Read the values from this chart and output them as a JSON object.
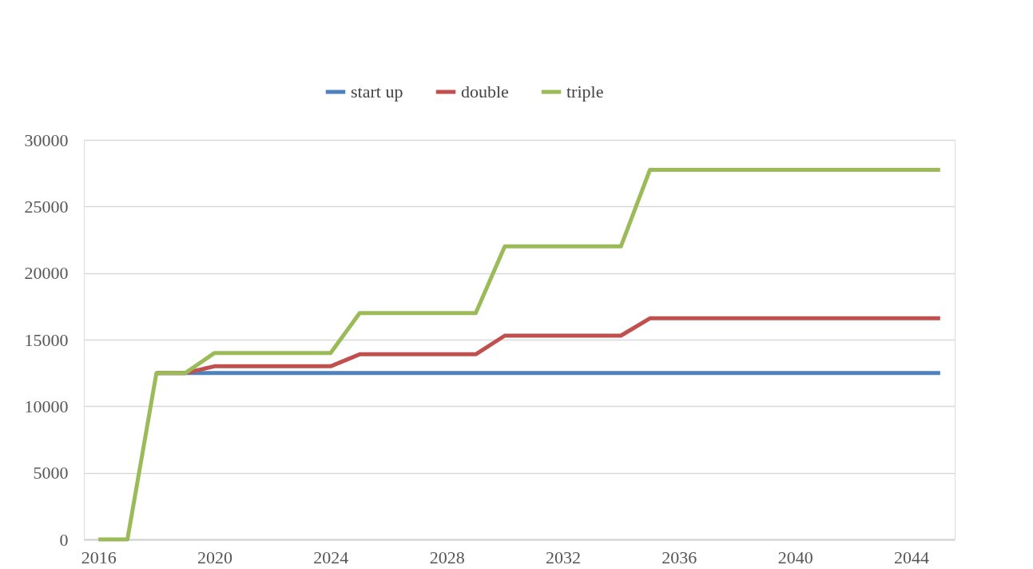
{
  "chart_data": {
    "type": "line",
    "x": [
      2016,
      2017,
      2018,
      2019,
      2020,
      2021,
      2022,
      2023,
      2024,
      2025,
      2026,
      2027,
      2028,
      2029,
      2030,
      2031,
      2032,
      2033,
      2034,
      2035,
      2036,
      2037,
      2038,
      2039,
      2040,
      2041,
      2042,
      2043,
      2044,
      2045
    ],
    "series": [
      {
        "name": "start up",
        "color": "#4f81bd",
        "values": [
          null,
          null,
          12500,
          12500,
          12500,
          12500,
          12500,
          12500,
          12500,
          12500,
          12500,
          12500,
          12500,
          12500,
          12500,
          12500,
          12500,
          12500,
          12500,
          12500,
          12500,
          12500,
          12500,
          12500,
          12500,
          12500,
          12500,
          12500,
          12500,
          12500
        ]
      },
      {
        "name": "double",
        "color": "#c0504d",
        "values": [
          null,
          null,
          12500,
          12500,
          13000,
          13000,
          13000,
          13000,
          13000,
          13900,
          13900,
          13900,
          13900,
          13900,
          15300,
          15300,
          15300,
          15300,
          15300,
          16600,
          16600,
          16600,
          16600,
          16600,
          16600,
          16600,
          16600,
          16600,
          16600,
          16600
        ]
      },
      {
        "name": "triple",
        "color": "#9bbb59",
        "values": [
          0,
          0,
          12500,
          12500,
          14000,
          14000,
          14000,
          14000,
          14000,
          17000,
          17000,
          17000,
          17000,
          17000,
          22000,
          22000,
          22000,
          22000,
          22000,
          27750,
          27750,
          27750,
          27750,
          27750,
          27750,
          27750,
          27750,
          27750,
          27750,
          27750
        ]
      }
    ],
    "xlim": [
      2015.5,
      2045.5
    ],
    "xticks": [
      2016,
      2020,
      2024,
      2028,
      2032,
      2036,
      2040,
      2044
    ],
    "ylim": [
      0,
      30000
    ],
    "yticks": [
      0,
      5000,
      10000,
      15000,
      20000,
      25000,
      30000
    ],
    "grid": "y",
    "legend": "top",
    "marker": "none",
    "line_style": "solid"
  }
}
